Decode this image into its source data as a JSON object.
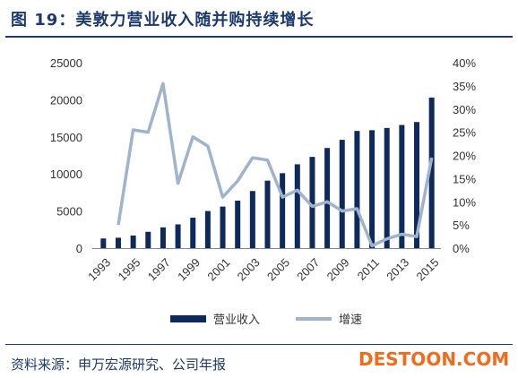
{
  "header": {
    "title": "图 19：美敦力营业收入随并购持续增长"
  },
  "footer": {
    "source": "资料来源：申万宏源研究、公司年报",
    "watermark": "DESTOON.COM"
  },
  "chart_data": {
    "type": "bar+line",
    "categories": [
      "1993",
      "1994",
      "1995",
      "1996",
      "1997",
      "1998",
      "1999",
      "2000",
      "2001",
      "2002",
      "2003",
      "2004",
      "2005",
      "2006",
      "2007",
      "2008",
      "2009",
      "2010",
      "2011",
      "2012",
      "2013",
      "2014",
      "2015"
    ],
    "x_tick_labels": [
      "1993",
      "1995",
      "1997",
      "1999",
      "2001",
      "2003",
      "2005",
      "2007",
      "2009",
      "2011",
      "2013",
      "2015"
    ],
    "series": [
      {
        "name": "营业收入",
        "type": "bar",
        "axis": "left",
        "color": "#0e2a5a",
        "values": [
          1300,
          1400,
          1700,
          2200,
          2800,
          3200,
          4100,
          5000,
          5600,
          6400,
          7700,
          9100,
          10100,
          11300,
          12300,
          13500,
          14600,
          15800,
          15900,
          16200,
          16600,
          17000,
          20300
        ]
      },
      {
        "name": "增速",
        "type": "line",
        "axis": "right",
        "color": "#9fb4cc",
        "values": [
          null,
          5,
          25.5,
          25,
          35.5,
          14,
          24,
          22,
          11,
          14.5,
          19.5,
          19,
          11,
          12.5,
          9,
          10,
          8,
          8.5,
          0.5,
          2,
          3,
          2.5,
          19.5
        ]
      }
    ],
    "y_left": {
      "ylim": [
        0,
        25000
      ],
      "ticks": [
        "0",
        "5000",
        "10000",
        "15000",
        "20000",
        "25000"
      ]
    },
    "y_right": {
      "ylim": [
        0,
        40
      ],
      "ticks": [
        "0%",
        "5%",
        "10%",
        "15%",
        "20%",
        "25%",
        "30%",
        "35%",
        "40%"
      ]
    },
    "legend": [
      {
        "label": "营业收入",
        "kind": "bar",
        "color": "#0e2a5a"
      },
      {
        "label": "增速",
        "kind": "line",
        "color": "#9fb4cc"
      }
    ],
    "legend_position": "bottom",
    "grid": false
  }
}
